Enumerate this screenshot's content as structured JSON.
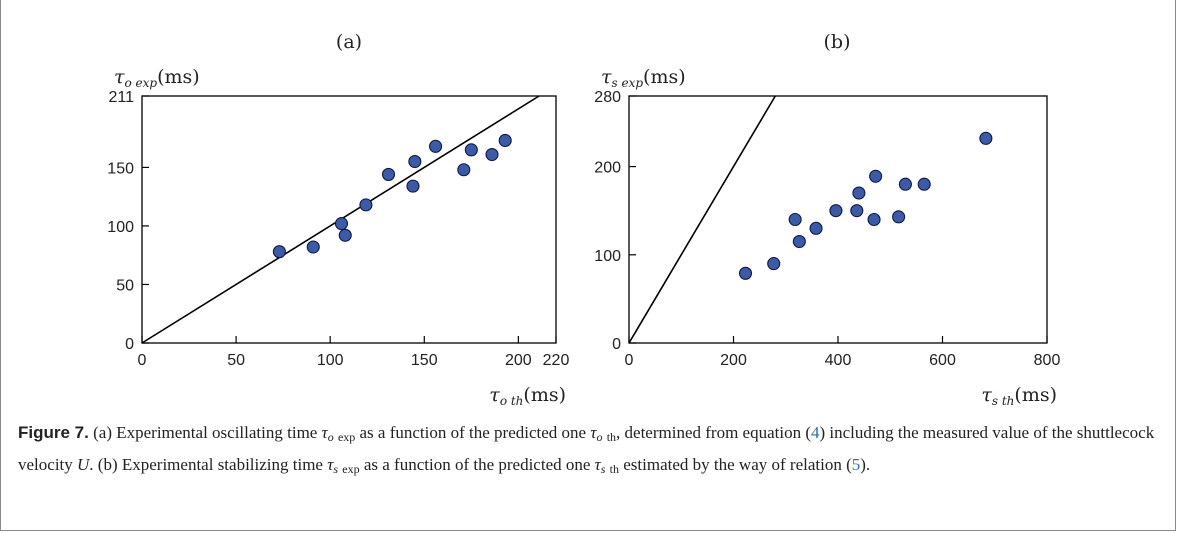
{
  "chart_data": [
    {
      "type": "scatter",
      "panel_label": "(a)",
      "ylabel_sym": "τ",
      "ylabel_sub": "o exp",
      "ylabel_unit": "(ms)",
      "xlabel_sym": "τ",
      "xlabel_sub": "o th",
      "xlabel_unit": "(ms)",
      "xlim": [
        0,
        220
      ],
      "ylim": [
        0,
        211
      ],
      "xticks": [
        0,
        50,
        100,
        150,
        200,
        220
      ],
      "yticks": [
        0,
        50,
        100,
        150,
        211
      ],
      "diagonal": true,
      "points": [
        {
          "x": 73,
          "y": 78
        },
        {
          "x": 91,
          "y": 82
        },
        {
          "x": 106,
          "y": 102
        },
        {
          "x": 108,
          "y": 92
        },
        {
          "x": 119,
          "y": 118
        },
        {
          "x": 131,
          "y": 144
        },
        {
          "x": 144,
          "y": 134
        },
        {
          "x": 145,
          "y": 155
        },
        {
          "x": 156,
          "y": 168
        },
        {
          "x": 171,
          "y": 148
        },
        {
          "x": 175,
          "y": 165
        },
        {
          "x": 186,
          "y": 161
        },
        {
          "x": 193,
          "y": 173
        }
      ]
    },
    {
      "type": "scatter",
      "panel_label": "(b)",
      "ylabel_sym": "τ",
      "ylabel_sub": "s exp",
      "ylabel_unit": "(ms)",
      "xlabel_sym": "τ",
      "xlabel_sub": "s th",
      "xlabel_unit": "(ms)",
      "xlim": [
        0,
        800
      ],
      "ylim": [
        0,
        280
      ],
      "xticks": [
        0,
        200,
        400,
        600,
        800
      ],
      "yticks": [
        0,
        100,
        200,
        280
      ],
      "diagonal": true,
      "points": [
        {
          "x": 223,
          "y": 79
        },
        {
          "x": 277,
          "y": 90
        },
        {
          "x": 318,
          "y": 140
        },
        {
          "x": 326,
          "y": 115
        },
        {
          "x": 358,
          "y": 130
        },
        {
          "x": 396,
          "y": 150
        },
        {
          "x": 436,
          "y": 150
        },
        {
          "x": 440,
          "y": 170
        },
        {
          "x": 469,
          "y": 140
        },
        {
          "x": 472,
          "y": 189
        },
        {
          "x": 516,
          "y": 143
        },
        {
          "x": 529,
          "y": 180
        },
        {
          "x": 565,
          "y": 180
        },
        {
          "x": 683,
          "y": 232
        }
      ]
    }
  ],
  "caption": {
    "fig_label": "Figure 7.",
    "p1": " (a) Experimental oscillating time ",
    "tau1_sub": "o",
    "tau1_sub2": "exp",
    "p2": " as a function of the predicted one ",
    "tau2_sub": "o",
    "tau2_sub2": "th",
    "p3": ", determined from equation (",
    "ref1": "4",
    "p4": ") including the measured value of the shuttlecock velocity ",
    "velocity": "U",
    "p5": ". (b) Experimental stabilizing time ",
    "tau3_sub": "s",
    "tau3_sub2": "exp",
    "p6": " as a function of the predicted one ",
    "tau4_sub": "s",
    "tau4_sub2": "th",
    "p7": " estimated by the way of relation (",
    "ref2": "5",
    "p8": ").",
    "tau": "τ"
  },
  "colors": {
    "marker_fill": "#3d5aa8",
    "marker_stroke": "#0d1a40",
    "axis": "#000000",
    "ref_link": "#2a6fa8"
  }
}
